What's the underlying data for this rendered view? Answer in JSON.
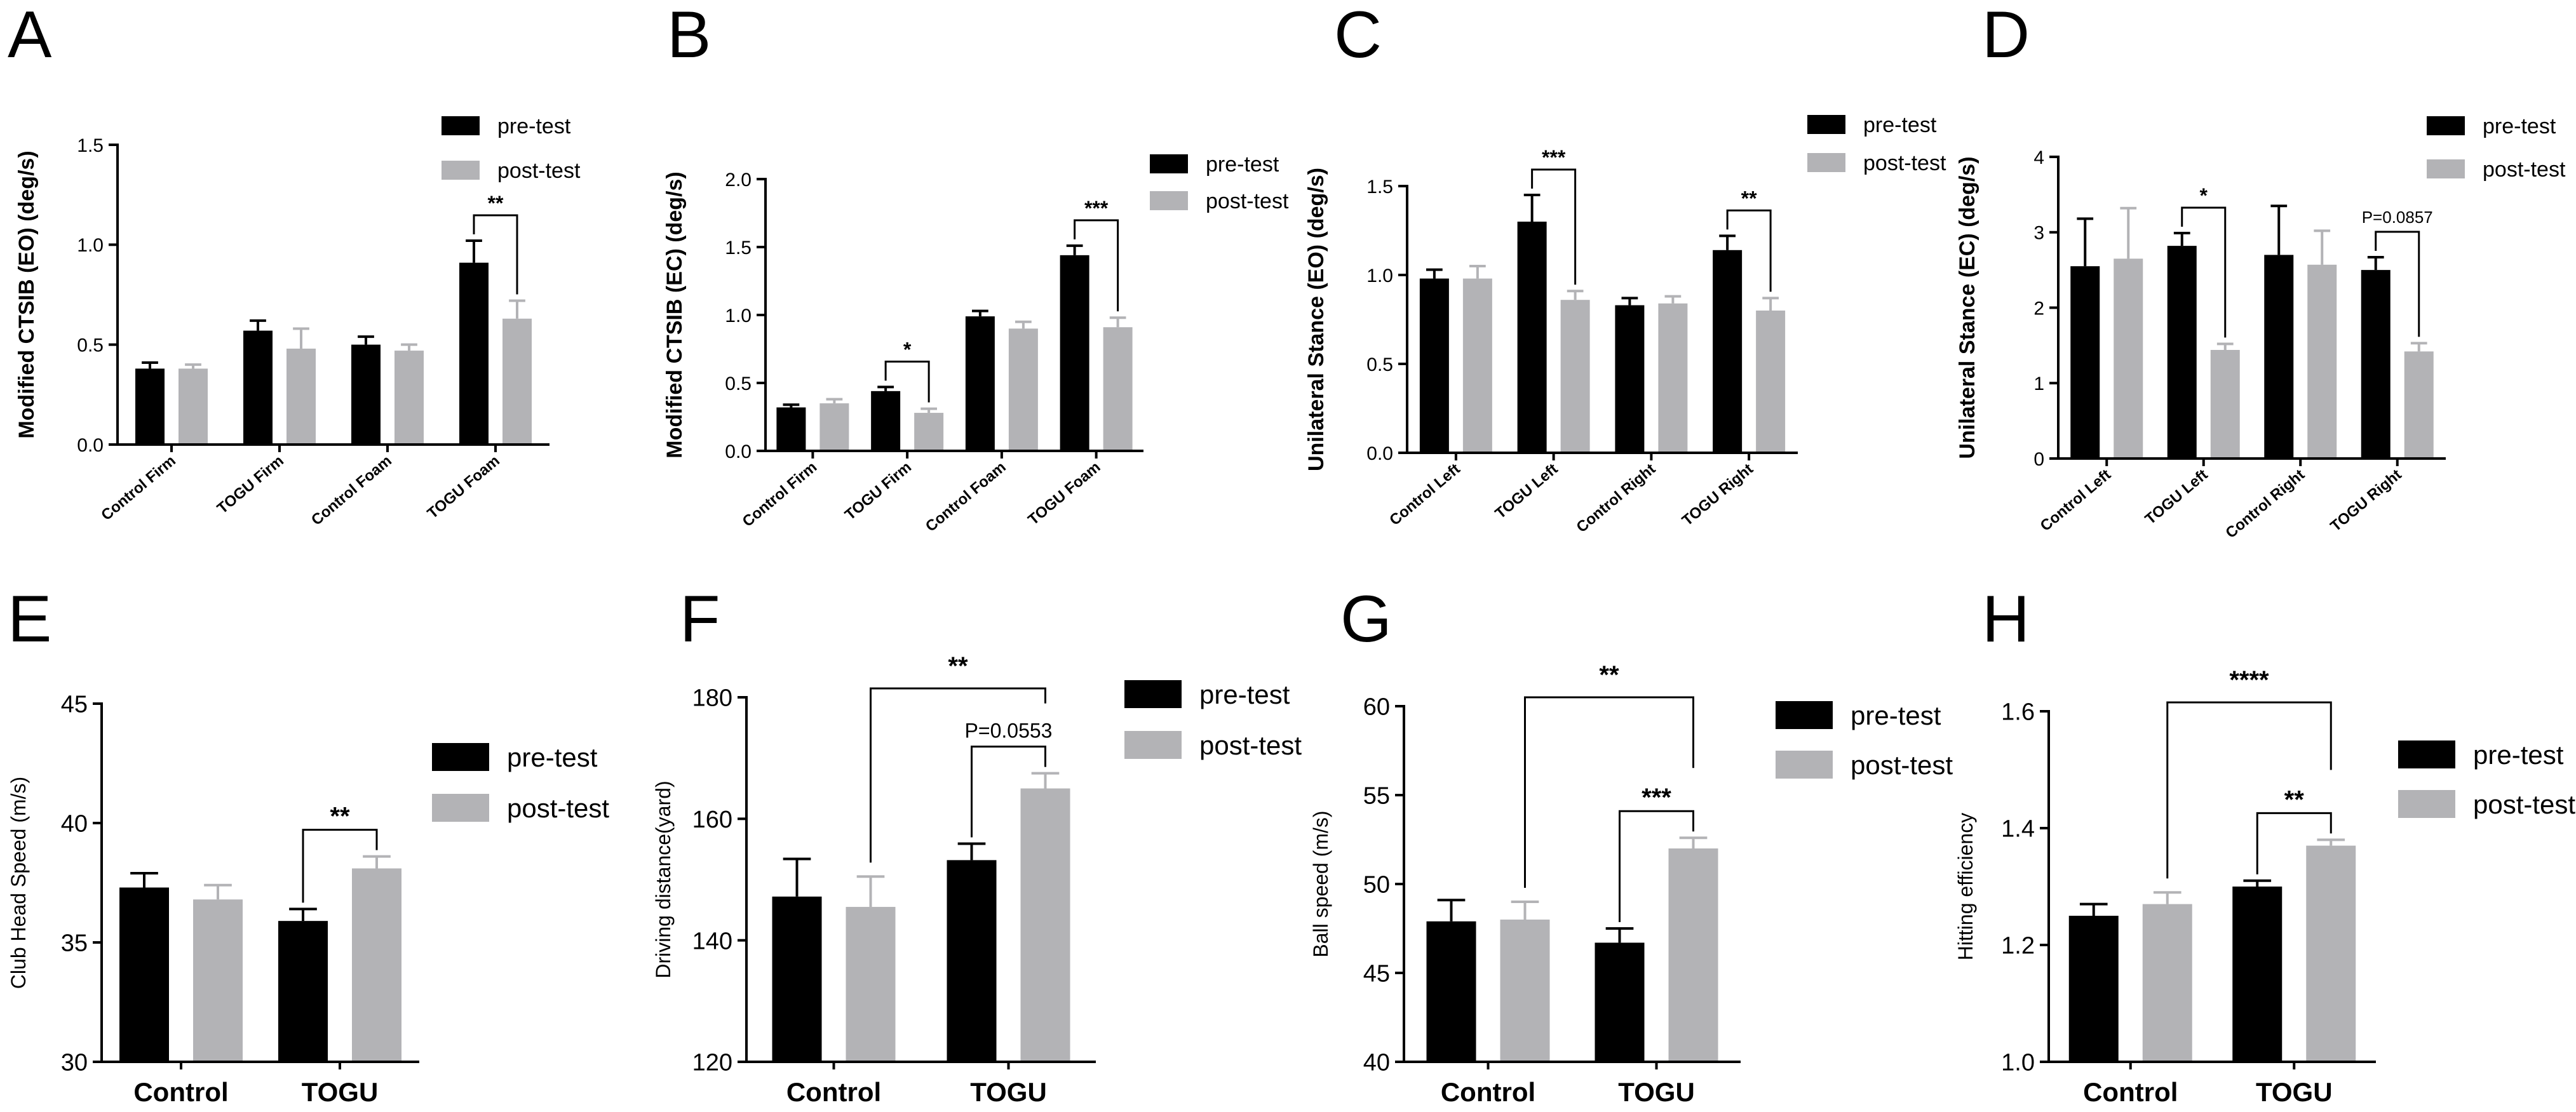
{
  "colors": {
    "pre": "#000000",
    "post": "#b3b3b6",
    "axis": "#000000",
    "text": "#000000"
  },
  "legend_labels": {
    "pre": "pre-test",
    "post": "post-test"
  },
  "chart_data": [
    {
      "panel": "A",
      "type": "bar",
      "ylabel": "Modified CTSIB  (EO)  (deg/s)",
      "categories": [
        "Control Firm",
        "TOGU Firm",
        "Control Foam",
        "TOGU Foam"
      ],
      "ylim": [
        0,
        1.5
      ],
      "yticks": [
        0.0,
        0.5,
        1.0,
        1.5
      ],
      "ytick_labels": [
        "0.0",
        "0.5",
        "1.0",
        "1.5"
      ],
      "series": [
        {
          "name": "pre-test",
          "values": [
            0.38,
            0.57,
            0.5,
            0.91
          ],
          "errors": [
            0.03,
            0.05,
            0.04,
            0.11
          ]
        },
        {
          "name": "post-test",
          "values": [
            0.38,
            0.48,
            0.47,
            0.63
          ],
          "errors": [
            0.02,
            0.1,
            0.03,
            0.09
          ]
        }
      ],
      "annotations": [
        {
          "category": 3,
          "mode": "within",
          "label": "**"
        }
      ]
    },
    {
      "panel": "B",
      "type": "bar",
      "ylabel": "Modified CTSIB  (EC)  (deg/s)",
      "categories": [
        "Control Firm",
        "TOGU Firm",
        "Control Foam",
        "TOGU Foam"
      ],
      "ylim": [
        0,
        2.0
      ],
      "yticks": [
        0.0,
        0.5,
        1.0,
        1.5,
        2.0
      ],
      "ytick_labels": [
        "0.0",
        "0.5",
        "1.0",
        "1.5",
        "2.0"
      ],
      "series": [
        {
          "name": "pre-test",
          "values": [
            0.32,
            0.44,
            0.99,
            1.44
          ],
          "errors": [
            0.02,
            0.03,
            0.04,
            0.07
          ]
        },
        {
          "name": "post-test",
          "values": [
            0.35,
            0.28,
            0.9,
            0.91
          ],
          "errors": [
            0.03,
            0.03,
            0.05,
            0.07
          ]
        }
      ],
      "annotations": [
        {
          "category": 1,
          "mode": "within",
          "label": "*"
        },
        {
          "category": 3,
          "mode": "within",
          "label": "***"
        }
      ]
    },
    {
      "panel": "C",
      "type": "bar",
      "ylabel": "Unilateral Stance  (EO)  (deg/s)",
      "categories": [
        "Control Left",
        "TOGU Left",
        "Control Right",
        "TOGU Right"
      ],
      "ylim": [
        0,
        1.5
      ],
      "yticks": [
        0.0,
        0.5,
        1.0,
        1.5
      ],
      "ytick_labels": [
        "0.0",
        "0.5",
        "1.0",
        "1.5"
      ],
      "series": [
        {
          "name": "pre-test",
          "values": [
            0.98,
            1.3,
            0.83,
            1.14
          ],
          "errors": [
            0.05,
            0.15,
            0.04,
            0.08
          ]
        },
        {
          "name": "post-test",
          "values": [
            0.98,
            0.86,
            0.84,
            0.8
          ],
          "errors": [
            0.07,
            0.05,
            0.04,
            0.07
          ]
        }
      ],
      "annotations": [
        {
          "category": 1,
          "mode": "within",
          "label": "***"
        },
        {
          "category": 3,
          "mode": "within",
          "label": "**"
        }
      ]
    },
    {
      "panel": "D",
      "type": "bar",
      "ylabel": "Unilateral Stance  (EC)  (deg/s)",
      "categories": [
        "Control Left",
        "TOGU Left",
        "Control Right",
        "TOGU Right"
      ],
      "ylim": [
        0,
        4
      ],
      "yticks": [
        0,
        1,
        2,
        3,
        4
      ],
      "ytick_labels": [
        "0",
        "1",
        "2",
        "3",
        "4"
      ],
      "series": [
        {
          "name": "pre-test",
          "values": [
            2.55,
            2.82,
            2.7,
            2.5
          ],
          "errors": [
            0.63,
            0.17,
            0.65,
            0.17
          ]
        },
        {
          "name": "post-test",
          "values": [
            2.65,
            1.44,
            2.57,
            1.42
          ],
          "errors": [
            0.67,
            0.08,
            0.45,
            0.11
          ]
        }
      ],
      "annotations": [
        {
          "category": 1,
          "mode": "within",
          "label": "*"
        },
        {
          "category": 3,
          "mode": "within",
          "label": "P=0.0857",
          "style": "p"
        }
      ]
    },
    {
      "panel": "E",
      "type": "bar",
      "ylabel": "Club Head Speed (m/s)",
      "categories": [
        "Control",
        "TOGU"
      ],
      "ylim": [
        30,
        45
      ],
      "yticks": [
        30,
        35,
        40,
        45
      ],
      "ytick_labels": [
        "30",
        "35",
        "40",
        "45"
      ],
      "series": [
        {
          "name": "pre-test",
          "values": [
            37.3,
            35.9
          ],
          "errors": [
            0.6,
            0.5
          ]
        },
        {
          "name": "post-test",
          "values": [
            36.8,
            38.1
          ],
          "errors": [
            0.6,
            0.5
          ]
        }
      ],
      "annotations": [
        {
          "category": 1,
          "mode": "within",
          "label": "**"
        }
      ]
    },
    {
      "panel": "F",
      "type": "bar",
      "ylabel": "Driving distance(yard)",
      "categories": [
        "Control",
        "TOGU"
      ],
      "ylim": [
        120,
        180
      ],
      "yticks": [
        120,
        140,
        160,
        180
      ],
      "ytick_labels": [
        "120",
        "140",
        "160",
        "180"
      ],
      "series": [
        {
          "name": "pre-test",
          "values": [
            147.2,
            153.2
          ],
          "errors": [
            6.2,
            2.7
          ]
        },
        {
          "name": "post-test",
          "values": [
            145.5,
            165.0
          ],
          "errors": [
            5.0,
            2.5
          ]
        }
      ],
      "annotations": [
        {
          "category": 1,
          "mode": "within",
          "label": "P=0.0553",
          "style": "p"
        },
        {
          "mode": "across",
          "label": "**"
        }
      ]
    },
    {
      "panel": "G",
      "type": "bar",
      "ylabel": "Ball speed (m/s)",
      "categories": [
        "Control",
        "TOGU"
      ],
      "ylim": [
        40,
        60
      ],
      "yticks": [
        40,
        45,
        50,
        55,
        60
      ],
      "ytick_labels": [
        "40",
        "45",
        "50",
        "55",
        "60"
      ],
      "series": [
        {
          "name": "pre-test",
          "values": [
            47.9,
            46.7
          ],
          "errors": [
            1.2,
            0.8
          ]
        },
        {
          "name": "post-test",
          "values": [
            48.0,
            52.0
          ],
          "errors": [
            1.0,
            0.6
          ]
        }
      ],
      "annotations": [
        {
          "category": 1,
          "mode": "within",
          "label": "***"
        },
        {
          "mode": "across",
          "label": "**"
        }
      ]
    },
    {
      "panel": "H",
      "type": "bar",
      "ylabel": "Hitting efficiency",
      "categories": [
        "Control",
        "TOGU"
      ],
      "ylim": [
        1.0,
        1.6
      ],
      "yticks": [
        1.0,
        1.2,
        1.4,
        1.6
      ],
      "ytick_labels": [
        "1.0",
        "1.2",
        "1.4",
        "1.6"
      ],
      "series": [
        {
          "name": "pre-test",
          "values": [
            1.25,
            1.3
          ],
          "errors": [
            0.02,
            0.01
          ]
        },
        {
          "name": "post-test",
          "values": [
            1.27,
            1.37
          ],
          "errors": [
            0.02,
            0.01
          ]
        }
      ],
      "annotations": [
        {
          "category": 1,
          "mode": "within",
          "label": "**"
        },
        {
          "mode": "across",
          "label": "****"
        }
      ]
    }
  ]
}
